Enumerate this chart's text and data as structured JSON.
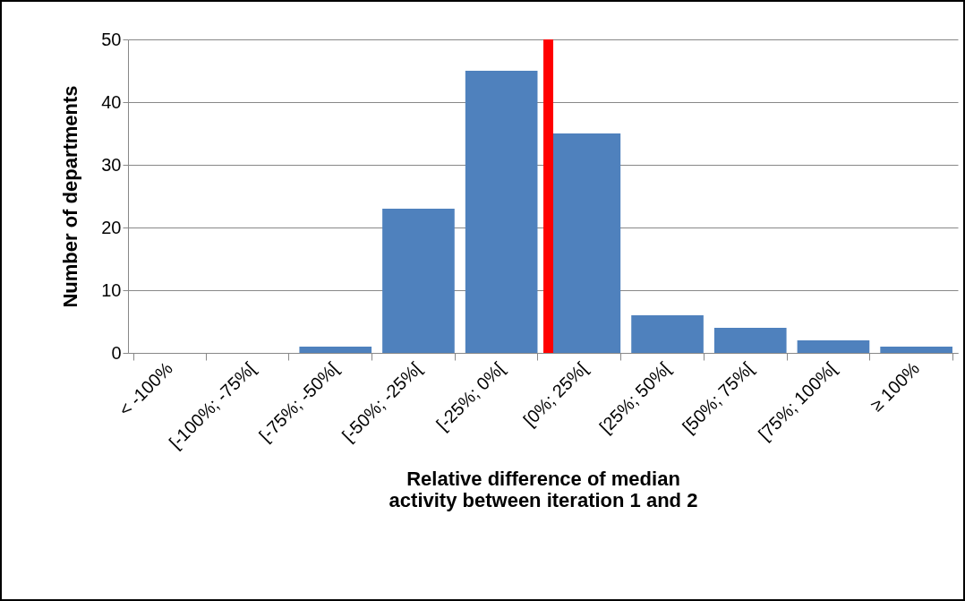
{
  "chart_data": {
    "type": "bar",
    "xlabel": "Relative difference of median activity between iteration 1 and 2",
    "ylabel": "Number of departments",
    "categories": [
      "< -100%",
      "[-100%; -75%[",
      "[-75%; -50%[",
      "[-50%; -25%[",
      "[-25%; 0%[",
      "[0%; 25%[",
      "[25%; 50%[",
      "[50%; 75%[",
      "[75%; 100%[",
      "≥ 100%"
    ],
    "values": [
      0,
      0,
      1,
      23,
      45,
      35,
      6,
      4,
      2,
      1
    ],
    "color": "#4f81bd",
    "ylim": [
      0,
      50
    ],
    "yticks": [
      0,
      10,
      20,
      30,
      40,
      50
    ],
    "grid": "y",
    "ref_lines": [
      {
        "axis": "x",
        "value": "[0%; 25%[",
        "color": "#ff0000"
      }
    ]
  }
}
